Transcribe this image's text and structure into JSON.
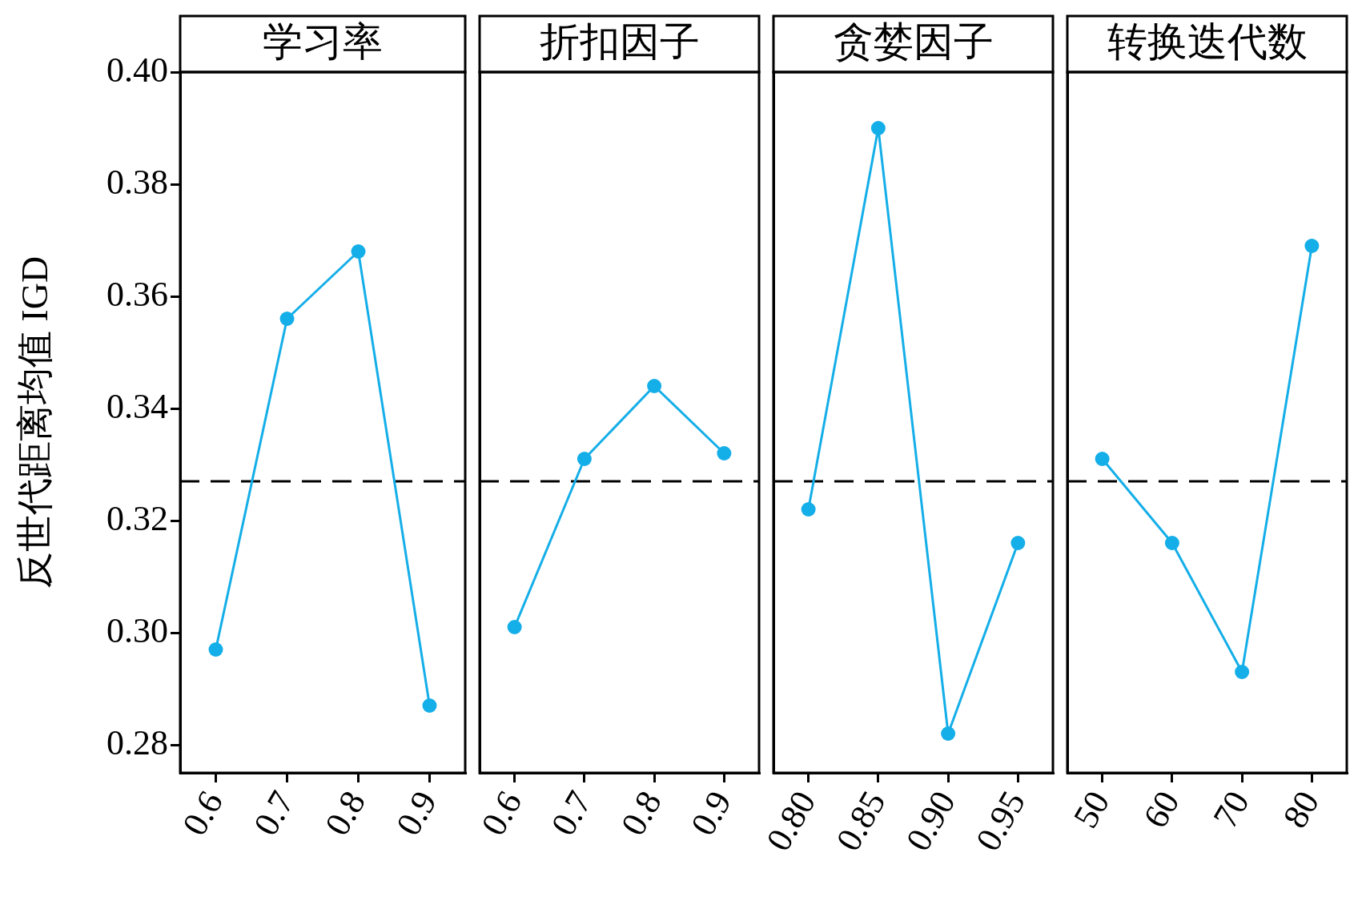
{
  "chart_data": [
    {
      "type": "line",
      "title": "学习率",
      "ylabel": "反世代距离均值 IGD",
      "categories": [
        "0.6",
        "0.7",
        "0.8",
        "0.9"
      ],
      "series": [
        {
          "color": "#14aee8",
          "values": [
            0.297,
            0.356,
            0.368,
            0.287
          ]
        }
      ],
      "ylim": [
        0.275,
        0.4
      ],
      "yticks": [
        0.28,
        {
          "value": 0.3,
          "label": "0.30"
        },
        0.32,
        0.34,
        0.36,
        0.38,
        {
          "value": 0.4,
          "label": "0.40"
        }
      ],
      "ref_lines": [
        {
          "axis": "y",
          "value": 0.327,
          "color": "#000000",
          "line_style": "dashed"
        }
      ],
      "marker": "circle",
      "line_style": "solid"
    },
    {
      "type": "line",
      "title": "折扣因子",
      "categories": [
        "0.6",
        "0.7",
        "0.8",
        "0.9"
      ],
      "series": [
        {
          "color": "#14aee8",
          "values": [
            0.301,
            0.331,
            0.344,
            0.332
          ]
        }
      ],
      "ylim": [
        0.275,
        0.4
      ],
      "tick_labels": "x",
      "ref_lines": [
        {
          "axis": "y",
          "value": 0.327,
          "color": "#000000",
          "line_style": "dashed"
        }
      ],
      "marker": "circle",
      "line_style": "solid"
    },
    {
      "type": "line",
      "title": "贪婪因子",
      "categories": [
        "0.80",
        "0.85",
        "0.90",
        "0.95"
      ],
      "series": [
        {
          "color": "#14aee8",
          "values": [
            0.322,
            0.39,
            0.282,
            0.316
          ]
        }
      ],
      "ylim": [
        0.275,
        0.4
      ],
      "tick_labels": "x",
      "ref_lines": [
        {
          "axis": "y",
          "value": 0.327,
          "color": "#000000",
          "line_style": "dashed"
        }
      ],
      "marker": "circle",
      "line_style": "solid"
    },
    {
      "type": "line",
      "title": "转换迭代数",
      "categories": [
        "50",
        "60",
        "70",
        "80"
      ],
      "series": [
        {
          "color": "#14aee8",
          "values": [
            0.331,
            0.316,
            0.293,
            0.369
          ]
        }
      ],
      "ylim": [
        0.275,
        0.4
      ],
      "tick_labels": "x",
      "ref_lines": [
        {
          "axis": "y",
          "value": 0.327,
          "color": "#000000",
          "line_style": "dashed"
        }
      ],
      "marker": "circle",
      "line_style": "solid"
    }
  ]
}
